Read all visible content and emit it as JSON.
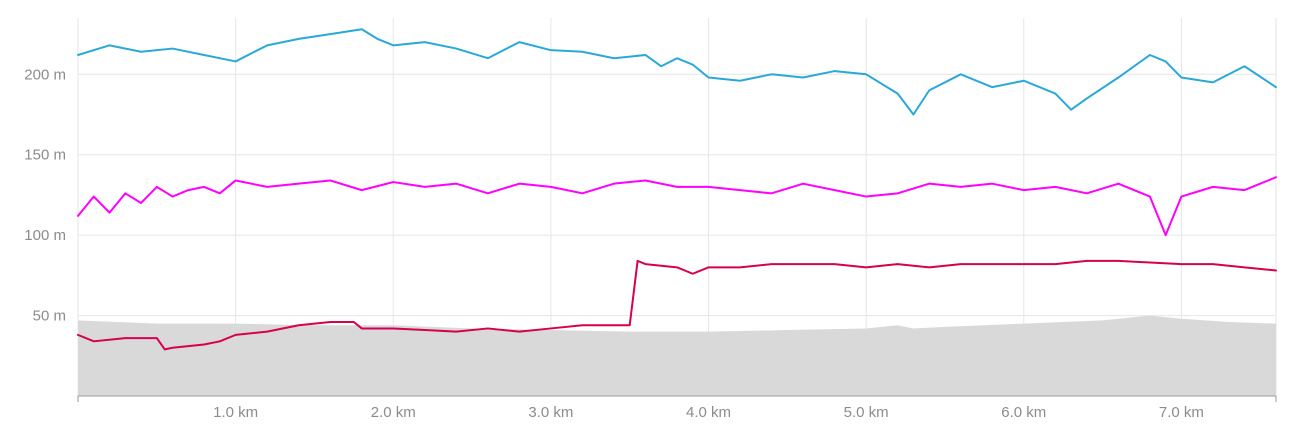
{
  "chart_data": {
    "type": "line",
    "title": "",
    "xlabel": "",
    "ylabel": "",
    "xlim": [
      0.0,
      7.6
    ],
    "ylim": [
      0,
      235
    ],
    "x_ticks": [
      {
        "value": 1.0,
        "label": "1.0 km"
      },
      {
        "value": 2.0,
        "label": "2.0 km"
      },
      {
        "value": 3.0,
        "label": "3.0 km"
      },
      {
        "value": 4.0,
        "label": "4.0 km"
      },
      {
        "value": 5.0,
        "label": "5.0 km"
      },
      {
        "value": 6.0,
        "label": "6.0 km"
      },
      {
        "value": 7.0,
        "label": "7.0 km"
      }
    ],
    "y_ticks": [
      {
        "value": 50,
        "label": "50 m"
      },
      {
        "value": 100,
        "label": "100 m"
      },
      {
        "value": 150,
        "label": "150 m"
      },
      {
        "value": 200,
        "label": "200 m"
      }
    ],
    "grid": true,
    "colors": {
      "cyan": "#2aa8d8",
      "magenta": "#ff00ff",
      "crimson": "#d6004f",
      "elevation_fill": "#d9d9d9",
      "grid": "#e6e6e6",
      "axis_text": "#8c8c8c"
    },
    "series": [
      {
        "kind": "area",
        "color": "#d9d9d9",
        "x": [
          0.0,
          0.5,
          1.0,
          1.5,
          2.0,
          2.5,
          3.0,
          3.5,
          4.0,
          4.5,
          5.0,
          5.2,
          5.3,
          5.5,
          6.0,
          6.5,
          6.8,
          7.0,
          7.3,
          7.6
        ],
        "y": [
          47,
          45,
          45,
          44,
          44,
          42,
          41,
          40,
          40,
          41,
          42,
          44,
          42,
          43,
          45,
          47,
          50,
          48,
          46,
          45
        ]
      },
      {
        "kind": "line",
        "color": "#2aa8d8",
        "x": [
          0.0,
          0.2,
          0.4,
          0.6,
          0.8,
          1.0,
          1.2,
          1.4,
          1.6,
          1.8,
          1.9,
          2.0,
          2.2,
          2.4,
          2.6,
          2.8,
          3.0,
          3.2,
          3.4,
          3.6,
          3.7,
          3.8,
          3.9,
          4.0,
          4.2,
          4.4,
          4.6,
          4.8,
          5.0,
          5.2,
          5.3,
          5.4,
          5.6,
          5.8,
          6.0,
          6.2,
          6.3,
          6.4,
          6.6,
          6.8,
          6.9,
          7.0,
          7.2,
          7.4,
          7.6
        ],
        "y": [
          212,
          218,
          214,
          216,
          212,
          208,
          218,
          222,
          225,
          228,
          222,
          218,
          220,
          216,
          210,
          220,
          215,
          214,
          210,
          212,
          205,
          210,
          206,
          198,
          196,
          200,
          198,
          202,
          200,
          188,
          175,
          190,
          200,
          192,
          196,
          188,
          178,
          185,
          198,
          212,
          208,
          198,
          195,
          205,
          192
        ]
      },
      {
        "kind": "line",
        "color": "#ff00ff",
        "x": [
          0.0,
          0.1,
          0.2,
          0.3,
          0.4,
          0.5,
          0.6,
          0.7,
          0.8,
          0.9,
          1.0,
          1.2,
          1.4,
          1.6,
          1.8,
          2.0,
          2.2,
          2.4,
          2.6,
          2.8,
          3.0,
          3.2,
          3.4,
          3.6,
          3.8,
          4.0,
          4.2,
          4.4,
          4.6,
          4.8,
          5.0,
          5.2,
          5.4,
          5.6,
          5.8,
          6.0,
          6.2,
          6.4,
          6.6,
          6.8,
          6.9,
          7.0,
          7.2,
          7.4,
          7.6
        ],
        "y": [
          112,
          124,
          114,
          126,
          120,
          130,
          124,
          128,
          130,
          126,
          134,
          130,
          132,
          134,
          128,
          133,
          130,
          132,
          126,
          132,
          130,
          126,
          132,
          134,
          130,
          130,
          128,
          126,
          132,
          128,
          124,
          126,
          132,
          130,
          132,
          128,
          130,
          126,
          132,
          124,
          100,
          124,
          130,
          128,
          136
        ]
      },
      {
        "kind": "line",
        "color": "#d6004f",
        "x": [
          0.0,
          0.1,
          0.3,
          0.5,
          0.55,
          0.6,
          0.8,
          0.9,
          1.0,
          1.2,
          1.4,
          1.6,
          1.75,
          1.8,
          2.0,
          2.2,
          2.4,
          2.6,
          2.8,
          3.0,
          3.2,
          3.4,
          3.5,
          3.55,
          3.6,
          3.8,
          3.9,
          4.0,
          4.2,
          4.4,
          4.6,
          4.8,
          5.0,
          5.2,
          5.4,
          5.6,
          5.8,
          6.0,
          6.2,
          6.4,
          6.6,
          6.8,
          7.0,
          7.2,
          7.4,
          7.6
        ],
        "y": [
          38,
          34,
          36,
          36,
          29,
          30,
          32,
          34,
          38,
          40,
          44,
          46,
          46,
          42,
          42,
          41,
          40,
          42,
          40,
          42,
          44,
          44,
          44,
          84,
          82,
          80,
          76,
          80,
          80,
          82,
          82,
          82,
          80,
          82,
          80,
          82,
          82,
          82,
          82,
          84,
          84,
          83,
          82,
          82,
          80,
          78
        ]
      }
    ]
  }
}
